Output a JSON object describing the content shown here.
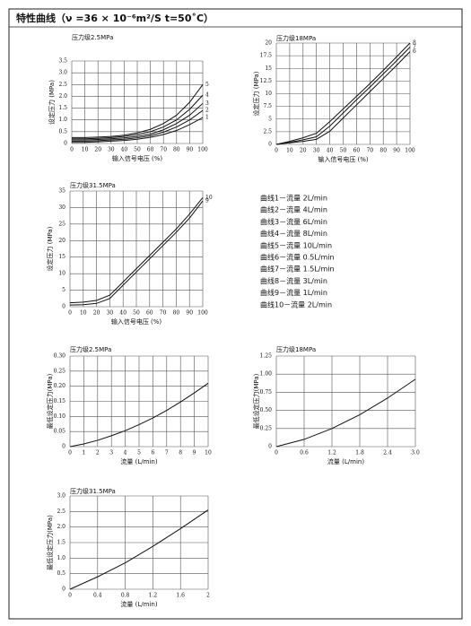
{
  "title": "特性曲线（ν =36 × 10⁻⁶m²/S  t=50˚C）",
  "curve_legend": [
    "曲线1－流量 2L/min",
    "曲线2－流量 4L/min",
    "曲线3－流量 6L/min",
    "曲线4－流量 8L/min",
    "曲线5－流量 10L/min",
    "曲线6－流量 0.5L/min",
    "曲线7－流量 1.5L/min",
    "曲线8－流量 3L/min",
    "曲线9－流量 1L/min",
    "曲线10－流量 2L/min"
  ],
  "chart_data": [
    {
      "type": "line",
      "title": "压力级2.5MPa",
      "xlabel": "输入信号电压 (%)",
      "ylabel": "设定压力 (MPa)",
      "x": [
        0,
        10,
        20,
        30,
        40,
        50,
        60,
        70,
        80,
        90,
        100
      ],
      "series": [
        {
          "name": "5",
          "color": "#111111",
          "values": [
            0.25,
            0.25,
            0.27,
            0.3,
            0.35,
            0.45,
            0.6,
            0.85,
            1.2,
            1.75,
            2.5
          ]
        },
        {
          "name": "4",
          "color": "#111111",
          "values": [
            0.2,
            0.2,
            0.22,
            0.25,
            0.3,
            0.38,
            0.5,
            0.7,
            1.0,
            1.45,
            2.05
          ]
        },
        {
          "name": "3",
          "color": "#111111",
          "values": [
            0.15,
            0.15,
            0.17,
            0.2,
            0.24,
            0.3,
            0.4,
            0.58,
            0.85,
            1.2,
            1.7
          ]
        },
        {
          "name": "2",
          "color": "#111111",
          "values": [
            0.1,
            0.1,
            0.12,
            0.15,
            0.18,
            0.24,
            0.33,
            0.48,
            0.7,
            1.0,
            1.4
          ]
        },
        {
          "name": "1",
          "color": "#111111",
          "values": [
            0.05,
            0.05,
            0.07,
            0.1,
            0.13,
            0.18,
            0.26,
            0.38,
            0.55,
            0.8,
            1.1
          ]
        }
      ],
      "xlim": [
        0,
        100
      ],
      "ylim": [
        0,
        3.5
      ],
      "xticks": [
        0,
        10,
        20,
        30,
        40,
        50,
        60,
        70,
        80,
        90,
        100
      ],
      "yticks": [
        0,
        0.5,
        {
          "value": 1,
          "label": "1.0"
        },
        1.5,
        {
          "value": 2,
          "label": "2.0"
        },
        2.5,
        {
          "value": 3,
          "label": "3.0"
        },
        3.5
      ],
      "grid": true
    },
    {
      "type": "line",
      "title": "压力级18MPa",
      "xlabel": "输入信号电压 (%)",
      "ylabel": "设定压力 (MPa)",
      "x": [
        0,
        10,
        20,
        30,
        40,
        50,
        60,
        70,
        80,
        90,
        100
      ],
      "series": [
        {
          "name": "8",
          "color": "#111111",
          "values": [
            0,
            0.6,
            1.3,
            2.2,
            4.5,
            7,
            9.5,
            12,
            14.6,
            17.3,
            20
          ]
        },
        {
          "name": "7",
          "color": "#111111",
          "values": [
            0,
            0.4,
            0.9,
            1.5,
            3.6,
            6.2,
            8.8,
            11.3,
            13.9,
            16.5,
            19.2
          ]
        },
        {
          "name": "6",
          "color": "#111111",
          "values": [
            0,
            0.3,
            0.6,
            1,
            2.6,
            5.2,
            7.8,
            10.4,
            13,
            15.6,
            18.3
          ]
        }
      ],
      "xlim": [
        0,
        100
      ],
      "ylim": [
        0,
        20
      ],
      "xticks": [
        0,
        10,
        20,
        30,
        40,
        50,
        60,
        70,
        80,
        90,
        100
      ],
      "yticks": [
        0,
        2.5,
        5,
        7.5,
        10,
        12.5,
        15,
        17.5,
        20
      ],
      "grid": true
    },
    {
      "type": "line",
      "title": "压力级31.5MPa",
      "xlabel": "输入信号电压 (%)",
      "ylabel": "设定压力 (MPa)",
      "x": [
        0,
        10,
        20,
        30,
        40,
        50,
        60,
        70,
        80,
        90,
        100
      ],
      "series": [
        {
          "name": "10",
          "color": "#111111",
          "values": [
            1.2,
            1.4,
            1.9,
            3.5,
            7.5,
            11.5,
            15.5,
            19.5,
            23.5,
            28,
            33
          ]
        },
        {
          "name": "9",
          "color": "#111111",
          "values": [
            0.5,
            0.6,
            1.0,
            2.5,
            6.5,
            10.5,
            14.5,
            18.5,
            22.5,
            26.8,
            32
          ]
        }
      ],
      "xlim": [
        0,
        100
      ],
      "ylim": [
        0,
        35
      ],
      "xticks": [
        0,
        10,
        20,
        30,
        40,
        50,
        60,
        70,
        80,
        90,
        100
      ],
      "yticks": [
        0,
        5,
        10,
        15,
        20,
        25,
        30,
        35
      ],
      "grid": true
    },
    {
      "type": "line",
      "title": "压力级2.5MPa",
      "xlabel": "流量 (L/min)",
      "ylabel": "最低设定压力(MPa)",
      "x": [
        0,
        1,
        2,
        3,
        4,
        5,
        6,
        7,
        8,
        9,
        10
      ],
      "series": [
        {
          "color": "#111111",
          "values": [
            0,
            0.009,
            0.021,
            0.036,
            0.053,
            0.073,
            0.095,
            0.12,
            0.148,
            0.178,
            0.21
          ]
        }
      ],
      "xlim": [
        0,
        10
      ],
      "ylim": [
        0,
        0.3
      ],
      "xticks": [
        0,
        1,
        2,
        3,
        4,
        5,
        6,
        7,
        8,
        9,
        10
      ],
      "yticks": [
        0,
        0.05,
        {
          "value": 0.1,
          "label": "0.10"
        },
        0.15,
        {
          "value": 0.2,
          "label": "0.20"
        },
        0.25,
        {
          "value": 0.3,
          "label": "0.30"
        }
      ],
      "grid": true
    },
    {
      "type": "line",
      "title": "压力级18MPa",
      "xlabel": "流量 (L/min)",
      "ylabel": "最低设定压力(MPa)",
      "x": [
        0,
        0.6,
        1.2,
        1.8,
        2.4,
        3.0
      ],
      "series": [
        {
          "color": "#111111",
          "values": [
            0,
            0.1,
            0.25,
            0.44,
            0.67,
            0.93
          ]
        }
      ],
      "xlim": [
        0,
        3
      ],
      "ylim": [
        0,
        1.25
      ],
      "xticks": [
        0,
        0.6,
        1.2,
        1.8,
        2.4,
        {
          "value": 3,
          "label": "3.0"
        }
      ],
      "yticks": [
        0,
        0.25,
        {
          "value": 0.5,
          "label": "0.50"
        },
        0.75,
        {
          "value": 1,
          "label": "1.00"
        },
        1.25
      ],
      "grid": true
    },
    {
      "type": "line",
      "title": "压力级31.5MPa",
      "xlabel": "流量 (L/min)",
      "ylabel": "最低设定压力(MPa)",
      "x": [
        0,
        0.4,
        0.8,
        1.2,
        1.6,
        2
      ],
      "series": [
        {
          "color": "#111111",
          "values": [
            0,
            0.4,
            0.85,
            1.38,
            1.95,
            2.55
          ]
        }
      ],
      "xlim": [
        0,
        2
      ],
      "ylim": [
        0,
        3
      ],
      "xticks": [
        0,
        0.4,
        0.8,
        1.2,
        1.6,
        2
      ],
      "yticks": [
        0,
        0.5,
        {
          "value": 1,
          "label": "1.0"
        },
        1.5,
        {
          "value": 2,
          "label": "2.0"
        },
        2.5,
        {
          "value": 3,
          "label": "3.0"
        }
      ],
      "grid": true
    }
  ]
}
